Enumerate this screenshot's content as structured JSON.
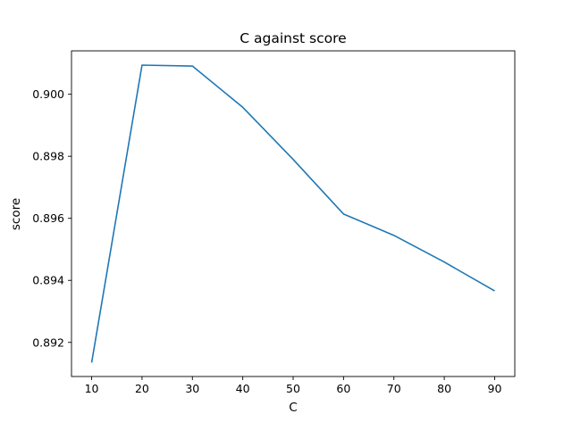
{
  "chart_data": {
    "type": "line",
    "title": "C against score",
    "xlabel": "C",
    "ylabel": "score",
    "x": [
      10,
      20,
      30,
      40,
      50,
      60,
      70,
      80,
      90
    ],
    "series": [
      {
        "color": "#1f77b4",
        "values": [
          0.89135,
          0.90094,
          0.90091,
          0.89958,
          0.8979,
          0.89614,
          0.89545,
          0.89459,
          0.89366
        ]
      }
    ],
    "xticks": [
      10,
      20,
      30,
      40,
      50,
      60,
      70,
      80,
      90
    ],
    "xtick_labels": [
      "10",
      "20",
      "30",
      "40",
      "50",
      "60",
      "70",
      "80",
      "90"
    ],
    "yticks": [
      0.892,
      0.894,
      0.896,
      0.898,
      0.9
    ],
    "ytick_labels": [
      "0.892",
      "0.894",
      "0.896",
      "0.898",
      "0.900"
    ],
    "xlim": [
      6,
      94
    ],
    "ylim": [
      0.8909,
      0.9014
    ],
    "grid": false,
    "legend": "none"
  }
}
